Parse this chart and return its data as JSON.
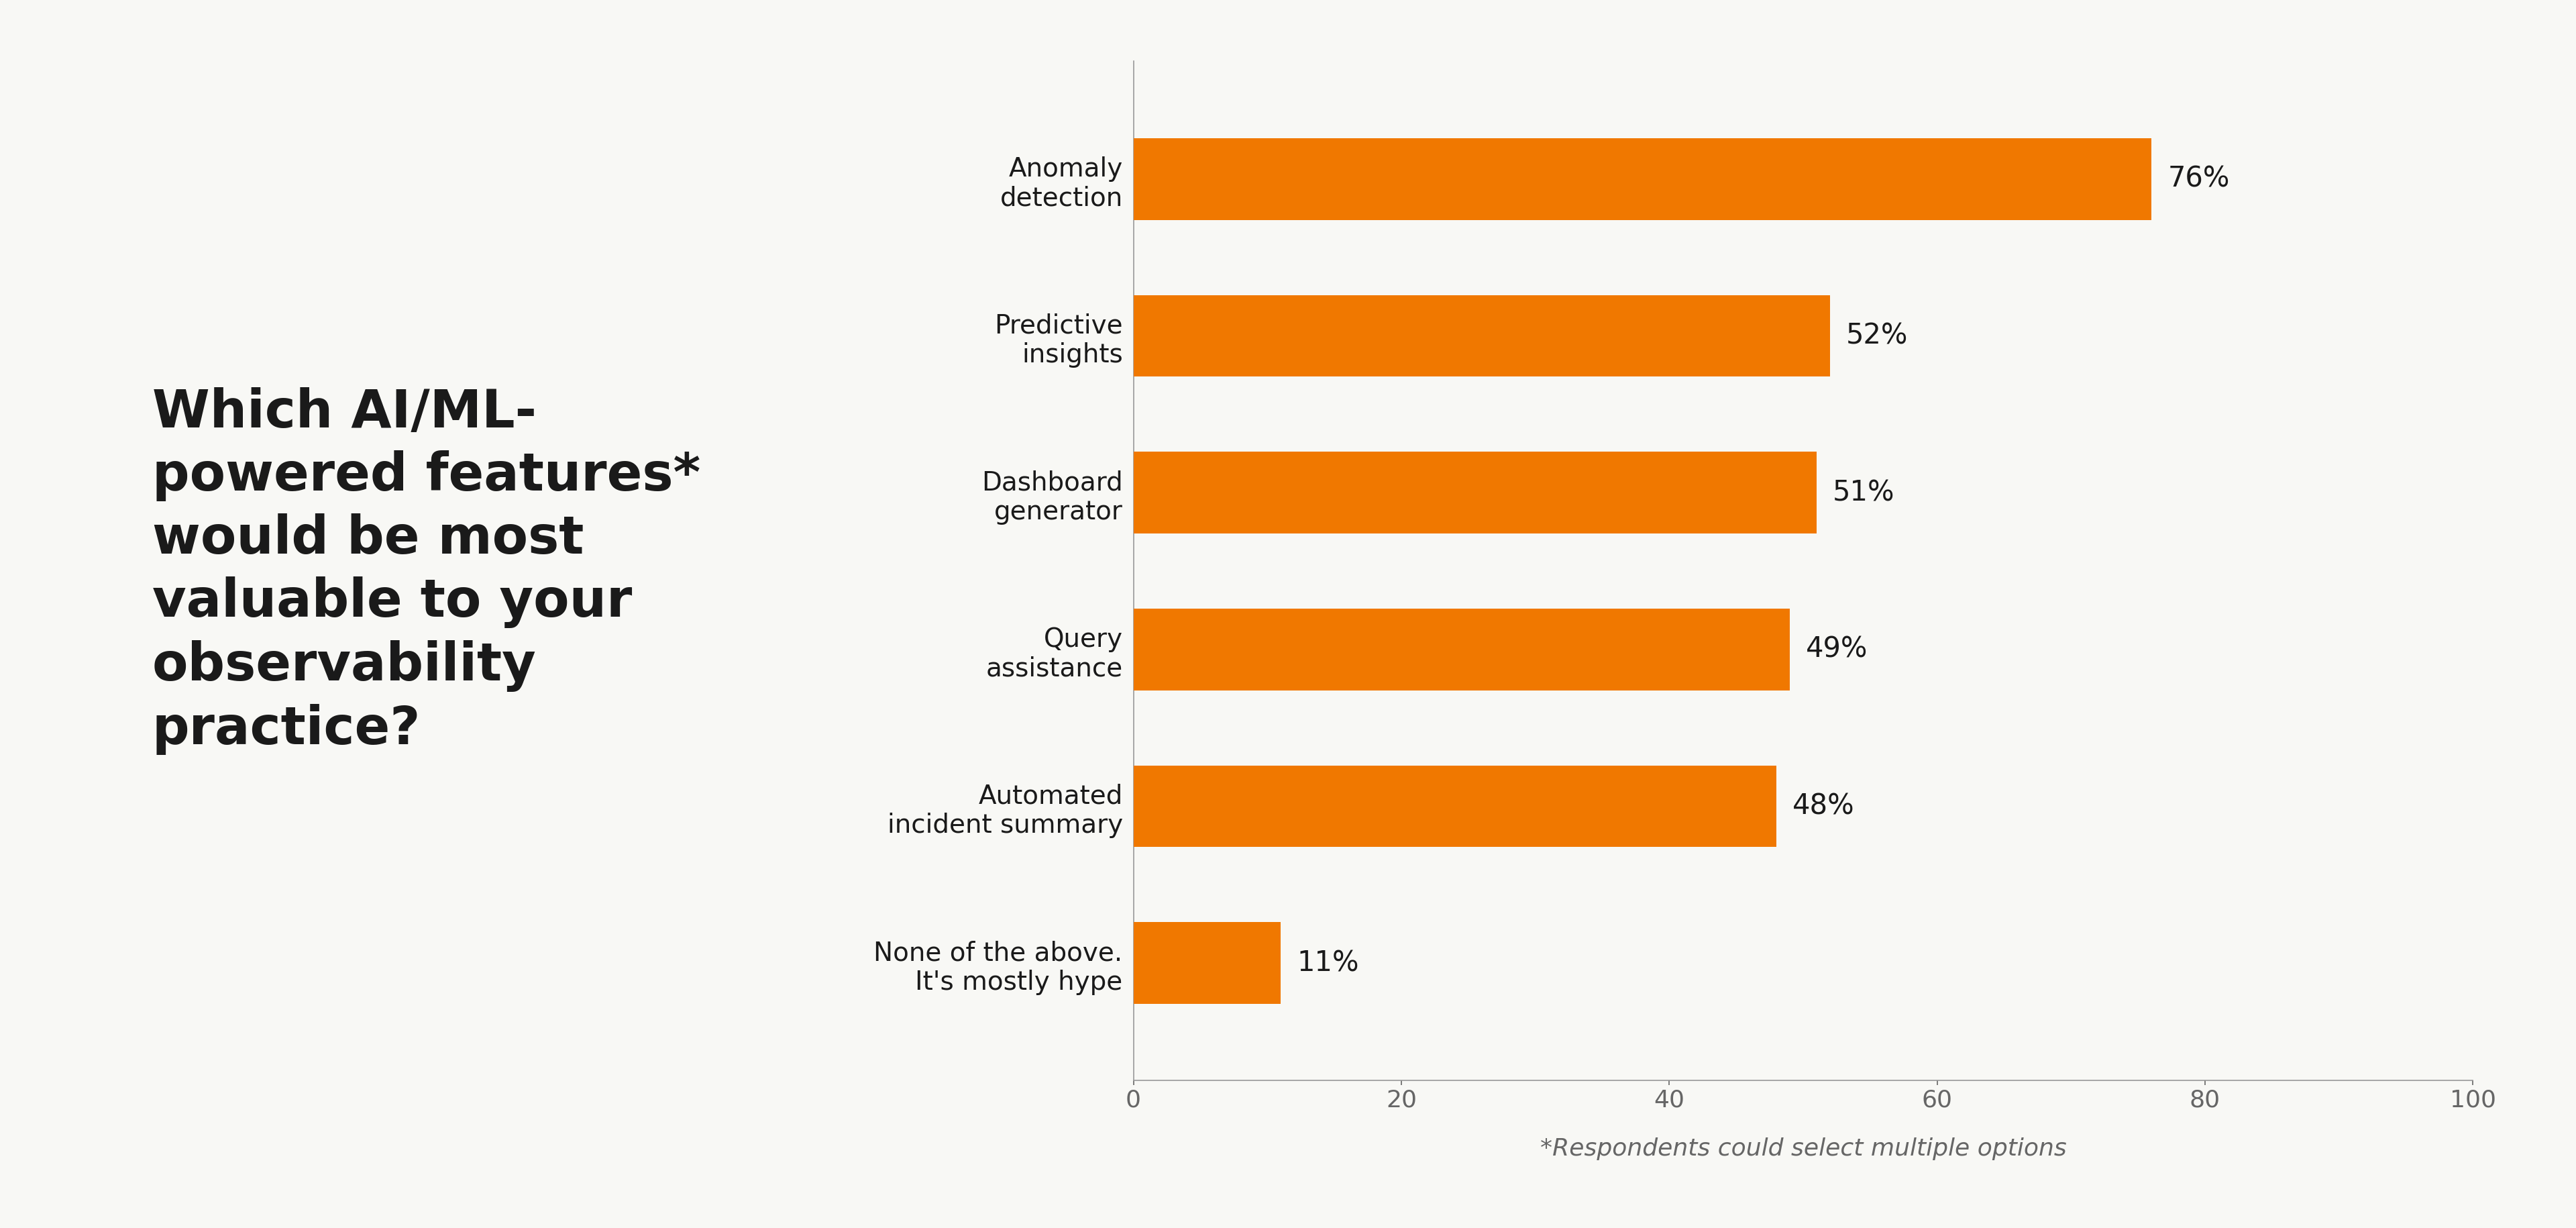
{
  "categories": [
    "Anomaly\ndetection",
    "Predictive\ninsights",
    "Dashboard\ngenerator",
    "Query\nassistance",
    "Automated\nincident summary",
    "None of the above.\nIt's mostly hype"
  ],
  "values": [
    76,
    52,
    51,
    49,
    48,
    11
  ],
  "labels": [
    "76%",
    "52%",
    "51%",
    "49%",
    "48%",
    "11%"
  ],
  "bar_color": "#F07800",
  "background_color": "#F8F8F5",
  "title_text": "Which AI/ML-\npowered features*\nwould be most\nvaluable to your\nobservability\npractice?",
  "title_color": "#1A1A1A",
  "footnote": "*Respondents could select multiple options",
  "xlim": [
    0,
    100
  ],
  "xticks": [
    0,
    20,
    40,
    60,
    80,
    100
  ],
  "bar_height": 0.52,
  "label_fontsize": 28,
  "tick_fontsize": 26,
  "title_fontsize": 56,
  "footnote_fontsize": 26,
  "value_label_fontsize": 30,
  "axis_color": "#999999",
  "tick_color": "#666666",
  "spine_linewidth": 1.2
}
